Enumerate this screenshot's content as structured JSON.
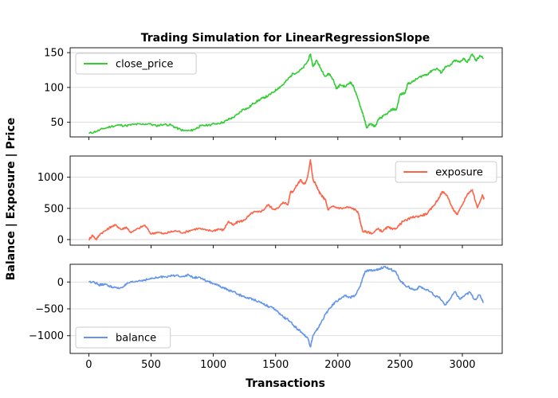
{
  "chart_data": {
    "type": "line",
    "title": "Trading Simulation for LinearRegressionSlope",
    "xlabel": "Transactions",
    "ylabel": "Balance | Exposure | Price",
    "xlim": [
      -150,
      3320
    ],
    "xticks": [
      0,
      500,
      1000,
      1500,
      2000,
      2500,
      3000
    ],
    "grid": "horizontal",
    "panels": [
      {
        "name": "close_price",
        "color": "#32cd32",
        "legend_position": "upper-left",
        "ylim": [
          29,
          157
        ],
        "yticks": [
          50,
          100,
          150
        ],
        "points": [
          [
            0,
            34
          ],
          [
            60,
            37
          ],
          [
            120,
            41
          ],
          [
            180,
            44
          ],
          [
            240,
            46
          ],
          [
            300,
            45
          ],
          [
            360,
            47
          ],
          [
            420,
            47
          ],
          [
            480,
            48
          ],
          [
            540,
            45
          ],
          [
            600,
            47
          ],
          [
            660,
            46
          ],
          [
            700,
            42
          ],
          [
            760,
            38
          ],
          [
            820,
            38
          ],
          [
            860,
            41
          ],
          [
            900,
            45
          ],
          [
            960,
            46
          ],
          [
            1020,
            48
          ],
          [
            1080,
            50
          ],
          [
            1120,
            54
          ],
          [
            1160,
            57
          ],
          [
            1200,
            62
          ],
          [
            1240,
            69
          ],
          [
            1280,
            70
          ],
          [
            1320,
            77
          ],
          [
            1360,
            81
          ],
          [
            1400,
            85
          ],
          [
            1440,
            88
          ],
          [
            1480,
            93
          ],
          [
            1520,
            99
          ],
          [
            1560,
            104
          ],
          [
            1600,
            112
          ],
          [
            1640,
            120
          ],
          [
            1680,
            122
          ],
          [
            1720,
            128
          ],
          [
            1760,
            138
          ],
          [
            1780,
            148
          ],
          [
            1800,
            130
          ],
          [
            1830,
            139
          ],
          [
            1860,
            128
          ],
          [
            1900,
            116
          ],
          [
            1930,
            120
          ],
          [
            1960,
            112
          ],
          [
            1990,
            98
          ],
          [
            2020,
            104
          ],
          [
            2060,
            101
          ],
          [
            2100,
            108
          ],
          [
            2130,
            100
          ],
          [
            2160,
            84
          ],
          [
            2190,
            68
          ],
          [
            2210,
            57
          ],
          [
            2230,
            42
          ],
          [
            2260,
            48
          ],
          [
            2300,
            44
          ],
          [
            2330,
            55
          ],
          [
            2360,
            58
          ],
          [
            2400,
            63
          ],
          [
            2440,
            69
          ],
          [
            2470,
            68
          ],
          [
            2500,
            90
          ],
          [
            2540,
            92
          ],
          [
            2560,
            105
          ],
          [
            2600,
            108
          ],
          [
            2640,
            113
          ],
          [
            2680,
            117
          ],
          [
            2720,
            119
          ],
          [
            2760,
            125
          ],
          [
            2800,
            127
          ],
          [
            2830,
            121
          ],
          [
            2860,
            129
          ],
          [
            2900,
            131
          ],
          [
            2940,
            139
          ],
          [
            2980,
            136
          ],
          [
            3010,
            142
          ],
          [
            3040,
            136
          ],
          [
            3080,
            148
          ],
          [
            3110,
            138
          ],
          [
            3140,
            146
          ],
          [
            3170,
            142
          ]
        ]
      },
      {
        "name": "exposure",
        "color": "#ff6347",
        "legend_position": "upper-right",
        "ylim": [
          -90,
          1340
        ],
        "yticks": [
          0,
          500,
          1000
        ],
        "points": [
          [
            0,
            0
          ],
          [
            30,
            70
          ],
          [
            60,
            0
          ],
          [
            90,
            90
          ],
          [
            140,
            150
          ],
          [
            180,
            210
          ],
          [
            220,
            230
          ],
          [
            260,
            160
          ],
          [
            300,
            200
          ],
          [
            340,
            110
          ],
          [
            400,
            180
          ],
          [
            450,
            230
          ],
          [
            500,
            90
          ],
          [
            550,
            120
          ],
          [
            600,
            90
          ],
          [
            650,
            120
          ],
          [
            700,
            140
          ],
          [
            760,
            110
          ],
          [
            820,
            150
          ],
          [
            880,
            180
          ],
          [
            940,
            150
          ],
          [
            1000,
            140
          ],
          [
            1040,
            170
          ],
          [
            1080,
            150
          ],
          [
            1120,
            290
          ],
          [
            1160,
            230
          ],
          [
            1200,
            290
          ],
          [
            1240,
            300
          ],
          [
            1280,
            370
          ],
          [
            1320,
            440
          ],
          [
            1360,
            440
          ],
          [
            1400,
            470
          ],
          [
            1440,
            560
          ],
          [
            1480,
            490
          ],
          [
            1520,
            500
          ],
          [
            1560,
            600
          ],
          [
            1600,
            560
          ],
          [
            1620,
            770
          ],
          [
            1640,
            770
          ],
          [
            1680,
            900
          ],
          [
            1700,
            960
          ],
          [
            1720,
            900
          ],
          [
            1740,
            900
          ],
          [
            1760,
            1040
          ],
          [
            1780,
            1280
          ],
          [
            1800,
            960
          ],
          [
            1820,
            900
          ],
          [
            1840,
            800
          ],
          [
            1860,
            730
          ],
          [
            1880,
            680
          ],
          [
            1900,
            640
          ],
          [
            1920,
            480
          ],
          [
            1960,
            530
          ],
          [
            2000,
            510
          ],
          [
            2040,
            500
          ],
          [
            2080,
            520
          ],
          [
            2120,
            500
          ],
          [
            2160,
            450
          ],
          [
            2180,
            290
          ],
          [
            2200,
            130
          ],
          [
            2240,
            120
          ],
          [
            2280,
            100
          ],
          [
            2320,
            170
          ],
          [
            2360,
            130
          ],
          [
            2400,
            200
          ],
          [
            2440,
            160
          ],
          [
            2480,
            200
          ],
          [
            2520,
            290
          ],
          [
            2560,
            320
          ],
          [
            2600,
            360
          ],
          [
            2640,
            370
          ],
          [
            2680,
            390
          ],
          [
            2720,
            420
          ],
          [
            2760,
            520
          ],
          [
            2800,
            630
          ],
          [
            2840,
            770
          ],
          [
            2880,
            700
          ],
          [
            2920,
            500
          ],
          [
            2960,
            400
          ],
          [
            3000,
            560
          ],
          [
            3040,
            730
          ],
          [
            3080,
            800
          ],
          [
            3120,
            510
          ],
          [
            3160,
            710
          ],
          [
            3175,
            650
          ]
        ]
      },
      {
        "name": "balance",
        "color": "#6495ed",
        "legend_position": "lower-left",
        "ylim": [
          -1330,
          330
        ],
        "yticks": [
          -1000,
          -500,
          0
        ],
        "points": [
          [
            0,
            0
          ],
          [
            40,
            10
          ],
          [
            80,
            -60
          ],
          [
            120,
            -40
          ],
          [
            160,
            -70
          ],
          [
            200,
            -100
          ],
          [
            240,
            -120
          ],
          [
            280,
            -80
          ],
          [
            320,
            -20
          ],
          [
            360,
            0
          ],
          [
            400,
            20
          ],
          [
            450,
            40
          ],
          [
            500,
            60
          ],
          [
            550,
            80
          ],
          [
            600,
            100
          ],
          [
            650,
            110
          ],
          [
            700,
            120
          ],
          [
            760,
            110
          ],
          [
            800,
            130
          ],
          [
            840,
            80
          ],
          [
            880,
            90
          ],
          [
            920,
            40
          ],
          [
            960,
            10
          ],
          [
            1000,
            -30
          ],
          [
            1040,
            -70
          ],
          [
            1080,
            -110
          ],
          [
            1120,
            -150
          ],
          [
            1160,
            -180
          ],
          [
            1200,
            -230
          ],
          [
            1240,
            -270
          ],
          [
            1280,
            -300
          ],
          [
            1320,
            -320
          ],
          [
            1360,
            -360
          ],
          [
            1400,
            -400
          ],
          [
            1440,
            -450
          ],
          [
            1480,
            -490
          ],
          [
            1520,
            -560
          ],
          [
            1560,
            -650
          ],
          [
            1600,
            -700
          ],
          [
            1640,
            -800
          ],
          [
            1680,
            -880
          ],
          [
            1720,
            -960
          ],
          [
            1760,
            -1050
          ],
          [
            1780,
            -1210
          ],
          [
            1800,
            -1000
          ],
          [
            1830,
            -900
          ],
          [
            1860,
            -780
          ],
          [
            1900,
            -600
          ],
          [
            1940,
            -480
          ],
          [
            1980,
            -370
          ],
          [
            2020,
            -310
          ],
          [
            2060,
            -260
          ],
          [
            2100,
            -290
          ],
          [
            2140,
            -250
          ],
          [
            2180,
            -80
          ],
          [
            2200,
            80
          ],
          [
            2220,
            200
          ],
          [
            2260,
            210
          ],
          [
            2300,
            220
          ],
          [
            2340,
            250
          ],
          [
            2380,
            290
          ],
          [
            2420,
            240
          ],
          [
            2460,
            200
          ],
          [
            2500,
            30
          ],
          [
            2540,
            -60
          ],
          [
            2580,
            -110
          ],
          [
            2620,
            -150
          ],
          [
            2660,
            -80
          ],
          [
            2700,
            -140
          ],
          [
            2740,
            -180
          ],
          [
            2780,
            -260
          ],
          [
            2820,
            -300
          ],
          [
            2860,
            -430
          ],
          [
            2900,
            -320
          ],
          [
            2940,
            -180
          ],
          [
            2980,
            -320
          ],
          [
            3020,
            -250
          ],
          [
            3060,
            -190
          ],
          [
            3100,
            -330
          ],
          [
            3140,
            -240
          ],
          [
            3170,
            -380
          ]
        ]
      }
    ]
  }
}
